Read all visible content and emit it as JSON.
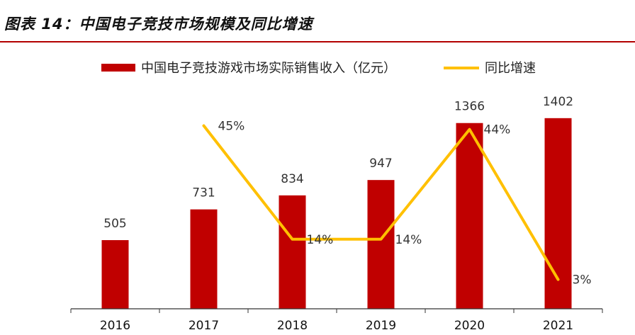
{
  "header": {
    "title": "图表 14：中国电子竞技市场规模及同比增速"
  },
  "chart_data": {
    "type": "bar",
    "categories": [
      "2016",
      "2017",
      "2018",
      "2019",
      "2020",
      "2021"
    ],
    "series": [
      {
        "name": "中国电子竞技游戏市场实际销售收入（亿元）",
        "type": "bar",
        "values": [
          505,
          731,
          834,
          947,
          1366,
          1402
        ],
        "labels": [
          "505",
          "731",
          "834",
          "947",
          "1366",
          "1402"
        ]
      },
      {
        "name": "同比增速",
        "type": "line",
        "values": [
          null,
          45,
          14,
          14,
          44,
          3
        ],
        "labels": [
          "",
          "45%",
          "14%",
          "14%",
          "44%",
          "3%"
        ]
      }
    ],
    "title": "",
    "xlabel": "",
    "ylabel": "",
    "ylim": [
      0,
      1750
    ],
    "y2lim": [
      -5,
      60
    ],
    "grid": false,
    "legend_position": "top",
    "colors": {
      "bar": "#c00000",
      "line": "#ffc000"
    }
  }
}
